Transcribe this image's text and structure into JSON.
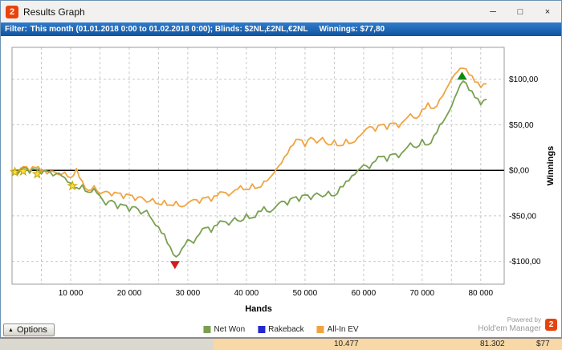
{
  "window": {
    "title": "Results Graph",
    "logo_text": "2",
    "controls": {
      "minimize": "─",
      "maximize": "□",
      "close": "×"
    }
  },
  "filter": {
    "label": "Filter:",
    "criteria": "This month (01.01.2018 0:00 to 01.02.2018 0:00); Blinds: $2NL,£2NL,€2NL",
    "winnings": "Winnings: $77,80"
  },
  "bottom": {
    "options_label": "Options",
    "options_arrow": "▲",
    "powered_line1": "Powered by",
    "powered_line2": "Hold'em Manager",
    "logo_text": "2"
  },
  "background_row": {
    "cells": [
      "10.477",
      "81.302",
      "$77"
    ]
  },
  "chart_data": {
    "type": "line",
    "title": "",
    "xlabel": "Hands",
    "ylabel": "Winnings",
    "xlim": [
      0,
      84000
    ],
    "ylim": [
      -125,
      135
    ],
    "x_ticks": [
      10000,
      20000,
      30000,
      40000,
      50000,
      60000,
      70000,
      80000
    ],
    "x_tick_labels": [
      "10 000",
      "20 000",
      "30 000",
      "40 000",
      "50 000",
      "60 000",
      "70 000",
      "80 000"
    ],
    "y_ticks": [
      100,
      50,
      0,
      -50,
      -100
    ],
    "y_tick_labels": [
      "$100,00",
      "$50,00",
      "$0,00",
      "-$50,00",
      "-$100,00"
    ],
    "grid": {
      "x_step": 5000,
      "y_lines": [
        100,
        50,
        -50,
        -100
      ]
    },
    "series": [
      {
        "name": "Rakeback",
        "color": "#2727cf",
        "under_zero_line": true,
        "width": 1.2,
        "x": [
          0,
          81000
        ],
        "values": [
          0,
          0
        ]
      },
      {
        "name": "All-In EV",
        "color": "#f0a440",
        "width": 1.8,
        "jitter": 3,
        "x_step": 1000,
        "values": [
          0,
          -2,
          4,
          -1,
          3,
          -1,
          -4,
          -1,
          -5,
          -2,
          -8,
          2,
          -12,
          -22,
          -17,
          -26,
          -23,
          -28,
          -25,
          -31,
          -27,
          -33,
          -29,
          -35,
          -31,
          -37,
          -33,
          -38,
          -34,
          -40,
          -36,
          -32,
          -36,
          -30,
          -34,
          -28,
          -24,
          -28,
          -22,
          -17,
          -21,
          -15,
          -19,
          -12,
          -8,
          0,
          8,
          18,
          28,
          34,
          26,
          36,
          30,
          36,
          28,
          33,
          27,
          34,
          30,
          36,
          42,
          48,
          43,
          50,
          45,
          52,
          47,
          55,
          62,
          57,
          67,
          74,
          68,
          78,
          88,
          100,
          108,
          112,
          105,
          97,
          91,
          95
        ]
      },
      {
        "name": "Net Won",
        "color": "#79a050",
        "width": 1.8,
        "jitter": 3,
        "x_step": 1000,
        "values": [
          0,
          -4,
          3,
          -3,
          1,
          -4,
          -1,
          -6,
          -3,
          -8,
          -14,
          -19,
          -16,
          -24,
          -20,
          -28,
          -38,
          -33,
          -42,
          -38,
          -45,
          -40,
          -48,
          -44,
          -55,
          -62,
          -70,
          -84,
          -95,
          -86,
          -76,
          -80,
          -70,
          -63,
          -68,
          -60,
          -56,
          -60,
          -52,
          -56,
          -48,
          -52,
          -45,
          -40,
          -46,
          -40,
          -34,
          -38,
          -30,
          -34,
          -27,
          -32,
          -25,
          -29,
          -23,
          -28,
          -18,
          -12,
          -6,
          0,
          6,
          2,
          10,
          15,
          10,
          18,
          14,
          22,
          30,
          25,
          34,
          28,
          38,
          50,
          58,
          70,
          86,
          98,
          88,
          80,
          72,
          78
        ]
      }
    ],
    "markers": {
      "star_color": "#ffdf3e",
      "star_stroke": "#bfa300",
      "stars": [
        {
          "x": 500,
          "y": -2
        },
        {
          "x": 1900,
          "y": -1
        },
        {
          "x": 4300,
          "y": -4
        },
        {
          "x": 10300,
          "y": -17
        }
      ],
      "red_triangle": {
        "x": 27800,
        "y": -104,
        "color": "#cf1d1d"
      },
      "green_triangle": {
        "x": 76800,
        "y": 104,
        "color": "#0e8a0e"
      }
    },
    "legend": [
      {
        "label": "Net Won",
        "color": "#79a050"
      },
      {
        "label": "Rakeback",
        "color": "#2727cf"
      },
      {
        "label": "All-In EV",
        "color": "#f0a440"
      }
    ]
  }
}
